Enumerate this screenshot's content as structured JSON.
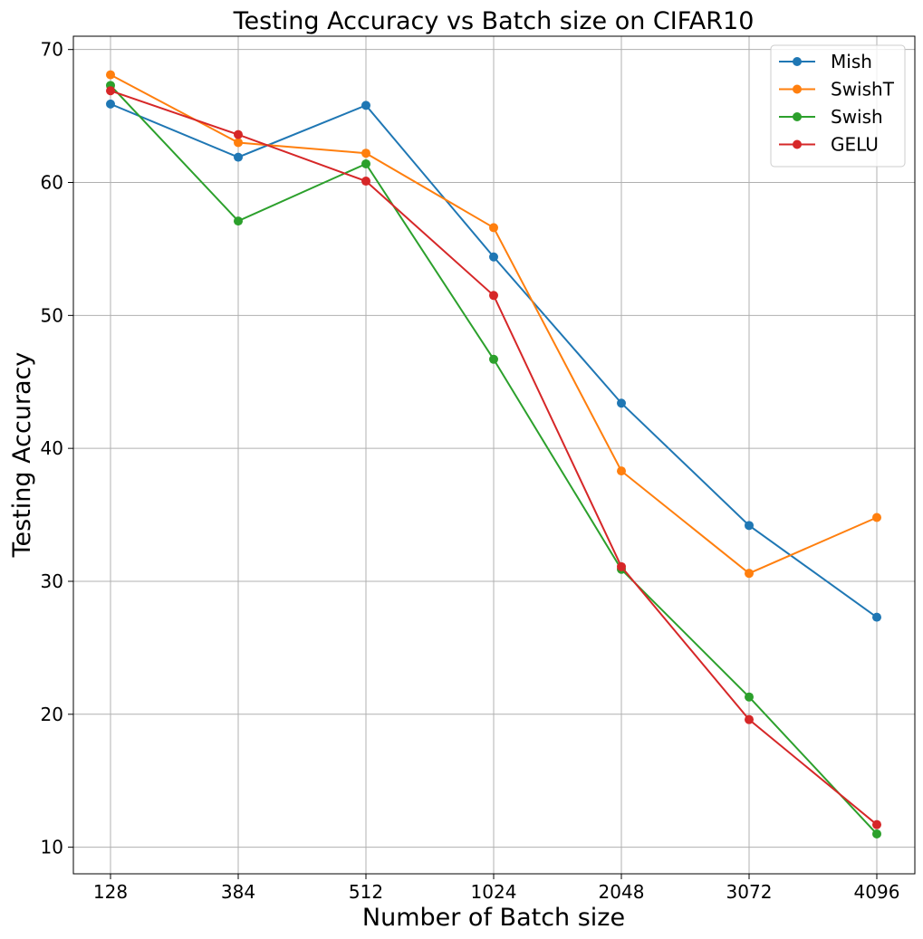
{
  "chart_data": {
    "type": "line",
    "title": "Testing Accuracy vs Batch size on CIFAR10",
    "xlabel": "Number of Batch size",
    "ylabel": "Testing Accuracy",
    "categories": [
      "128",
      "384",
      "512",
      "1024",
      "2048",
      "3072",
      "4096"
    ],
    "ylim": [
      8,
      71
    ],
    "yticks": [
      10,
      20,
      30,
      40,
      50,
      60,
      70
    ],
    "grid": true,
    "legend_position": "top-right",
    "series": [
      {
        "name": "Mish",
        "color": "#1f77b4",
        "values": [
          65.9,
          61.9,
          65.8,
          54.4,
          43.4,
          34.2,
          27.3
        ]
      },
      {
        "name": "SwishT",
        "color": "#ff7f0e",
        "values": [
          68.1,
          63.0,
          62.2,
          56.6,
          38.3,
          30.6,
          34.8
        ]
      },
      {
        "name": "Swish",
        "color": "#2ca02c",
        "values": [
          67.3,
          57.1,
          61.4,
          46.7,
          30.9,
          21.3,
          11.0
        ]
      },
      {
        "name": "GELU",
        "color": "#d62728",
        "values": [
          66.9,
          63.6,
          60.1,
          51.5,
          31.1,
          19.6,
          11.7
        ]
      }
    ]
  }
}
